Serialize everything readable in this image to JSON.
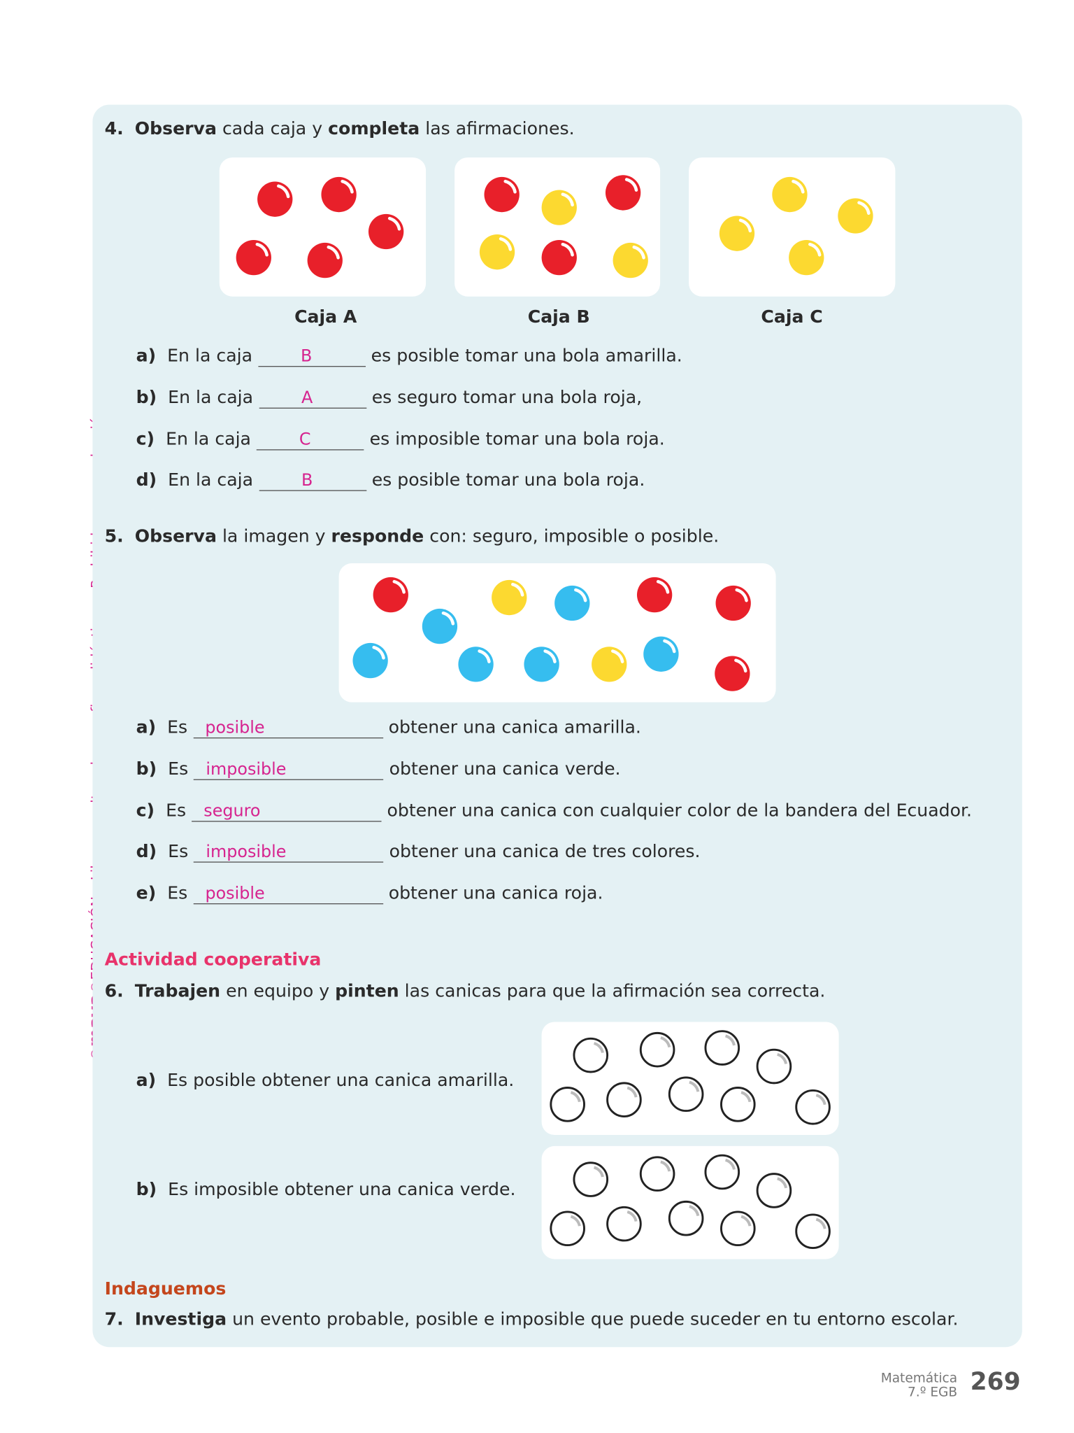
{
  "sidebar_text": {
    "copyright": "©",
    "brand": "maya",
    "rest": "®EDUCACIÓN – Libro resuelto solo para fines didácticos – Prohibida su reproducción"
  },
  "colors": {
    "red": "#e8202a",
    "yellow": "#fcd930",
    "blue": "#36bdef",
    "panel": "#e4f1f4",
    "answer": "#d6248f",
    "cooperative": "#e8336b",
    "inquiry": "#c4461c"
  },
  "q4": {
    "number": "4.",
    "b1": "Observa",
    "t1": " cada caja y ",
    "b2": "completa",
    "t2": " las afirmaciones.",
    "boxes": [
      {
        "label": "Caja A",
        "balls": [
          "red",
          "red",
          "red",
          "red",
          "red"
        ]
      },
      {
        "label": "Caja B",
        "balls": [
          "red",
          "yellow",
          "red",
          "yellow",
          "red",
          "yellow"
        ]
      },
      {
        "label": "Caja C",
        "balls": [
          "yellow",
          "yellow",
          "yellow",
          "yellow"
        ]
      }
    ],
    "items": [
      {
        "letter": "a)",
        "pre": "En la caja",
        "answer": "B",
        "post": "es posible tomar una bola amarilla."
      },
      {
        "letter": "b)",
        "pre": "En la caja",
        "answer": "A",
        "post": "es seguro tomar una bola roja,"
      },
      {
        "letter": "c)",
        "pre": "En la caja",
        "answer": "C",
        "post": "es imposible tomar una bola roja."
      },
      {
        "letter": "d)",
        "pre": "En la caja",
        "answer": "B",
        "post": "es posible tomar una bola roja."
      }
    ]
  },
  "q5": {
    "number": "5.",
    "b1": "Observa",
    "t1": " la imagen y ",
    "b2": "responde",
    "t2": " con: seguro, imposible o posible.",
    "balls": [
      "red",
      "blue",
      "yellow",
      "blue",
      "red",
      "red",
      "blue",
      "blue",
      "blue",
      "yellow",
      "blue",
      "red"
    ],
    "items": [
      {
        "letter": "a)",
        "pre": "Es",
        "answer": "posible",
        "post": "obtener una canica amarilla."
      },
      {
        "letter": "b)",
        "pre": "Es",
        "answer": "imposible",
        "post": "obtener una canica verde."
      },
      {
        "letter": "c)",
        "pre": "Es",
        "answer": "seguro",
        "post": "obtener una canica con cualquier color de la bandera del Ecuador."
      },
      {
        "letter": "d)",
        "pre": "Es",
        "answer": "imposible",
        "post": "obtener una canica de tres colores."
      },
      {
        "letter": "e)",
        "pre": "Es",
        "answer": "posible",
        "post": "obtener una canica roja."
      }
    ]
  },
  "cooperative": {
    "heading": "Actividad cooperativa"
  },
  "q6": {
    "number": "6.",
    "b1": "Trabajen",
    "t1": " en equipo y ",
    "b2": "pinten",
    "t2": " las canicas para que la afirmación sea correcta.",
    "items": [
      {
        "letter": "a)",
        "text": "Es posible obtener una canica amarilla."
      },
      {
        "letter": "b)",
        "text": "Es imposible obtener una canica verde."
      }
    ]
  },
  "inquiry": {
    "heading": "Indaguemos"
  },
  "q7": {
    "number": "7.",
    "b1": "Investiga",
    "t1": " un evento probable, posible e imposible que puede suceder en tu entorno escolar."
  },
  "footer": {
    "subject": "Matemática",
    "grade": "7.º EGB",
    "page": "269"
  }
}
